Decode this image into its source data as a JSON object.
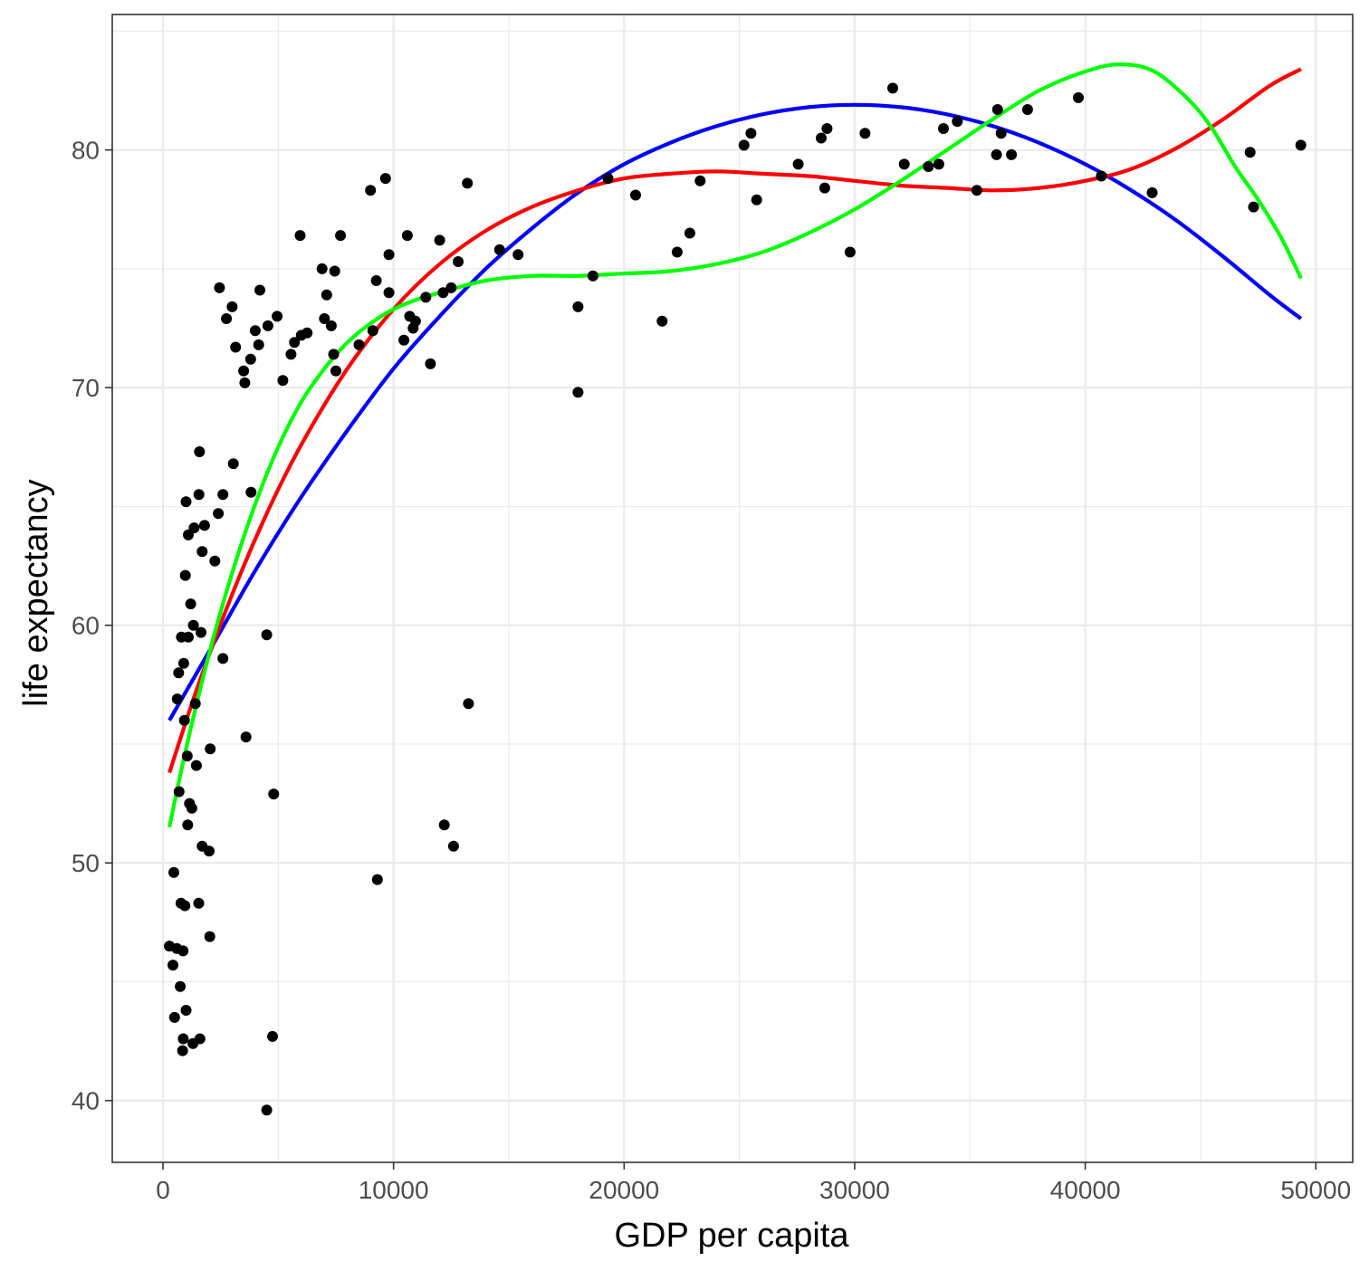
{
  "chart_data": {
    "type": "scatter",
    "title": "",
    "xlabel": "GDP per capita",
    "ylabel": "life expectancy",
    "xlim": [
      -2200,
      51600
    ],
    "ylim": [
      37.4,
      85.7
    ],
    "x_ticks": [
      0,
      10000,
      20000,
      30000,
      40000,
      50000
    ],
    "x_tick_labels": [
      "0",
      "10000",
      "20000",
      "30000",
      "40000",
      "50000"
    ],
    "y_ticks": [
      40,
      50,
      60,
      70,
      80
    ],
    "y_tick_labels": [
      "40",
      "50",
      "60",
      "70",
      "80"
    ],
    "grid": true,
    "legend": "none",
    "colors": {
      "points": "#000000",
      "blue_fit": "#0000ff",
      "red_fit": "#ff0000",
      "green_fit": "#00ff00",
      "grid": "#ebebeb",
      "panel_border": "#333333"
    },
    "points": [
      [
        277,
        46.5
      ],
      [
        430,
        45.7
      ],
      [
        470,
        49.6
      ],
      [
        500,
        43.5
      ],
      [
        600,
        46.4
      ],
      [
        620,
        56.9
      ],
      [
        680,
        58.0
      ],
      [
        700,
        53.0
      ],
      [
        750,
        44.8
      ],
      [
        780,
        48.3
      ],
      [
        800,
        59.5
      ],
      [
        850,
        42.1
      ],
      [
        870,
        46.3
      ],
      [
        880,
        42.6
      ],
      [
        900,
        58.4
      ],
      [
        930,
        56.0
      ],
      [
        950,
        48.2
      ],
      [
        970,
        62.1
      ],
      [
        1000,
        65.2
      ],
      [
        1000,
        43.8
      ],
      [
        1050,
        54.5
      ],
      [
        1070,
        51.6
      ],
      [
        1100,
        59.5
      ],
      [
        1100,
        63.8
      ],
      [
        1150,
        52.5
      ],
      [
        1200,
        60.9
      ],
      [
        1250,
        52.3
      ],
      [
        1300,
        42.4
      ],
      [
        1320,
        60.0
      ],
      [
        1350,
        64.1
      ],
      [
        1400,
        56.7
      ],
      [
        1450,
        54.1
      ],
      [
        1550,
        48.3
      ],
      [
        1560,
        65.5
      ],
      [
        1580,
        67.3
      ],
      [
        1600,
        42.6
      ],
      [
        1650,
        59.7
      ],
      [
        1700,
        63.1
      ],
      [
        1700,
        50.7
      ],
      [
        1800,
        64.2
      ],
      [
        2000,
        50.5
      ],
      [
        2030,
        46.9
      ],
      [
        2050,
        54.8
      ],
      [
        2250,
        62.7
      ],
      [
        2400,
        64.7
      ],
      [
        2450,
        74.2
      ],
      [
        2600,
        65.5
      ],
      [
        2600,
        58.6
      ],
      [
        2750,
        72.9
      ],
      [
        3000,
        73.4
      ],
      [
        3050,
        66.8
      ],
      [
        3150,
        71.7
      ],
      [
        3500,
        70.7
      ],
      [
        3550,
        70.2
      ],
      [
        3600,
        55.3
      ],
      [
        3800,
        71.2
      ],
      [
        3820,
        65.6
      ],
      [
        4000,
        72.4
      ],
      [
        4150,
        71.8
      ],
      [
        4200,
        74.1
      ],
      [
        4500,
        59.6
      ],
      [
        4500,
        39.6
      ],
      [
        4550,
        72.6
      ],
      [
        4750,
        42.7
      ],
      [
        4800,
        52.9
      ],
      [
        4950,
        73.0
      ],
      [
        5200,
        70.3
      ],
      [
        5550,
        71.4
      ],
      [
        5700,
        71.9
      ],
      [
        5950,
        76.4
      ],
      [
        6000,
        72.2
      ],
      [
        6250,
        72.3
      ],
      [
        6900,
        75.0
      ],
      [
        7000,
        72.9
      ],
      [
        7100,
        73.9
      ],
      [
        7300,
        72.6
      ],
      [
        7400,
        71.4
      ],
      [
        7450,
        74.9
      ],
      [
        7500,
        70.7
      ],
      [
        7700,
        76.4
      ],
      [
        8500,
        71.8
      ],
      [
        9000,
        78.3
      ],
      [
        9100,
        72.4
      ],
      [
        9250,
        74.5
      ],
      [
        9300,
        49.3
      ],
      [
        9650,
        78.8
      ],
      [
        9800,
        75.6
      ],
      [
        9800,
        74.0
      ],
      [
        10450,
        72.0
      ],
      [
        10600,
        76.4
      ],
      [
        10700,
        73.0
      ],
      [
        10850,
        72.5
      ],
      [
        10950,
        72.8
      ],
      [
        11400,
        73.8
      ],
      [
        11600,
        71.0
      ],
      [
        12000,
        76.2
      ],
      [
        12150,
        74.0
      ],
      [
        12200,
        51.6
      ],
      [
        12500,
        74.2
      ],
      [
        12600,
        50.7
      ],
      [
        12800,
        75.3
      ],
      [
        13200,
        78.6
      ],
      [
        13250,
        56.7
      ],
      [
        14600,
        75.8
      ],
      [
        15400,
        75.6
      ],
      [
        18000,
        73.4
      ],
      [
        18000,
        69.8
      ],
      [
        18650,
        74.7
      ],
      [
        19300,
        78.8
      ],
      [
        20500,
        78.1
      ],
      [
        21650,
        72.8
      ],
      [
        22300,
        75.7
      ],
      [
        22850,
        76.5
      ],
      [
        23300,
        78.7
      ],
      [
        25200,
        80.2
      ],
      [
        25500,
        80.7
      ],
      [
        25750,
        77.9
      ],
      [
        27550,
        79.4
      ],
      [
        28550,
        80.5
      ],
      [
        28700,
        78.4
      ],
      [
        28800,
        80.9
      ],
      [
        29800,
        75.7
      ],
      [
        30450,
        80.7
      ],
      [
        31650,
        82.6
      ],
      [
        32150,
        79.4
      ],
      [
        33200,
        79.3
      ],
      [
        33650,
        79.4
      ],
      [
        33850,
        80.9
      ],
      [
        34450,
        81.2
      ],
      [
        35300,
        78.3
      ],
      [
        36150,
        79.8
      ],
      [
        36200,
        81.7
      ],
      [
        36350,
        80.7
      ],
      [
        36800,
        79.8
      ],
      [
        37500,
        81.7
      ],
      [
        39700,
        82.2
      ],
      [
        40700,
        78.9
      ],
      [
        42900,
        78.2
      ],
      [
        47150,
        79.9
      ],
      [
        47300,
        77.6
      ],
      [
        49350,
        80.2
      ]
    ],
    "series": [
      {
        "color": "#0000ff",
        "x": [
          277,
          2000,
          4000,
          6000,
          8000,
          10000,
          12000,
          14000,
          16000,
          18000,
          20000,
          22000,
          24000,
          26000,
          28000,
          30000,
          32000,
          34000,
          36000,
          38000,
          40000,
          42000,
          44000,
          46000,
          48000,
          49357
        ],
        "y": [
          56.0,
          58.9,
          62.3,
          65.4,
          68.2,
          70.8,
          73.0,
          75.0,
          76.7,
          78.2,
          79.4,
          80.3,
          81.0,
          81.5,
          81.8,
          81.9,
          81.8,
          81.5,
          81.0,
          80.3,
          79.4,
          78.3,
          77.0,
          75.5,
          73.9,
          72.9
        ]
      },
      {
        "color": "#ff0000",
        "x": [
          277,
          1500,
          3000,
          4500,
          6000,
          8000,
          10000,
          12000,
          14000,
          16000,
          18000,
          20000,
          22000,
          24000,
          26000,
          28000,
          30000,
          32000,
          34000,
          36000,
          38000,
          40000,
          42000,
          44000,
          46000,
          48000,
          49357
        ],
        "y": [
          53.8,
          57.4,
          61.3,
          64.7,
          67.6,
          70.8,
          73.3,
          75.2,
          76.6,
          77.6,
          78.3,
          78.8,
          79.0,
          79.1,
          79.0,
          78.9,
          78.7,
          78.5,
          78.4,
          78.3,
          78.4,
          78.7,
          79.2,
          80.1,
          81.3,
          82.7,
          83.4
        ]
      },
      {
        "color": "#00ff00",
        "x": [
          277,
          1000,
          2000,
          3000,
          4000,
          5000,
          6000,
          7000,
          8000,
          9000,
          10000,
          11000,
          12000,
          14000,
          16000,
          18000,
          20000,
          22000,
          24000,
          26000,
          28000,
          30000,
          32000,
          34000,
          36000,
          38000,
          40000,
          41500,
          43000,
          44500,
          45500,
          46500,
          47500,
          48500,
          49357
        ],
        "y": [
          51.5,
          54.8,
          58.8,
          62.2,
          65.1,
          67.5,
          69.4,
          70.8,
          71.9,
          72.7,
          73.3,
          73.7,
          74.0,
          74.5,
          74.7,
          74.7,
          74.8,
          74.9,
          75.2,
          75.7,
          76.5,
          77.5,
          78.7,
          80.0,
          81.3,
          82.5,
          83.3,
          83.6,
          83.3,
          82.1,
          80.9,
          79.3,
          77.9,
          76.3,
          74.6
        ]
      }
    ]
  }
}
